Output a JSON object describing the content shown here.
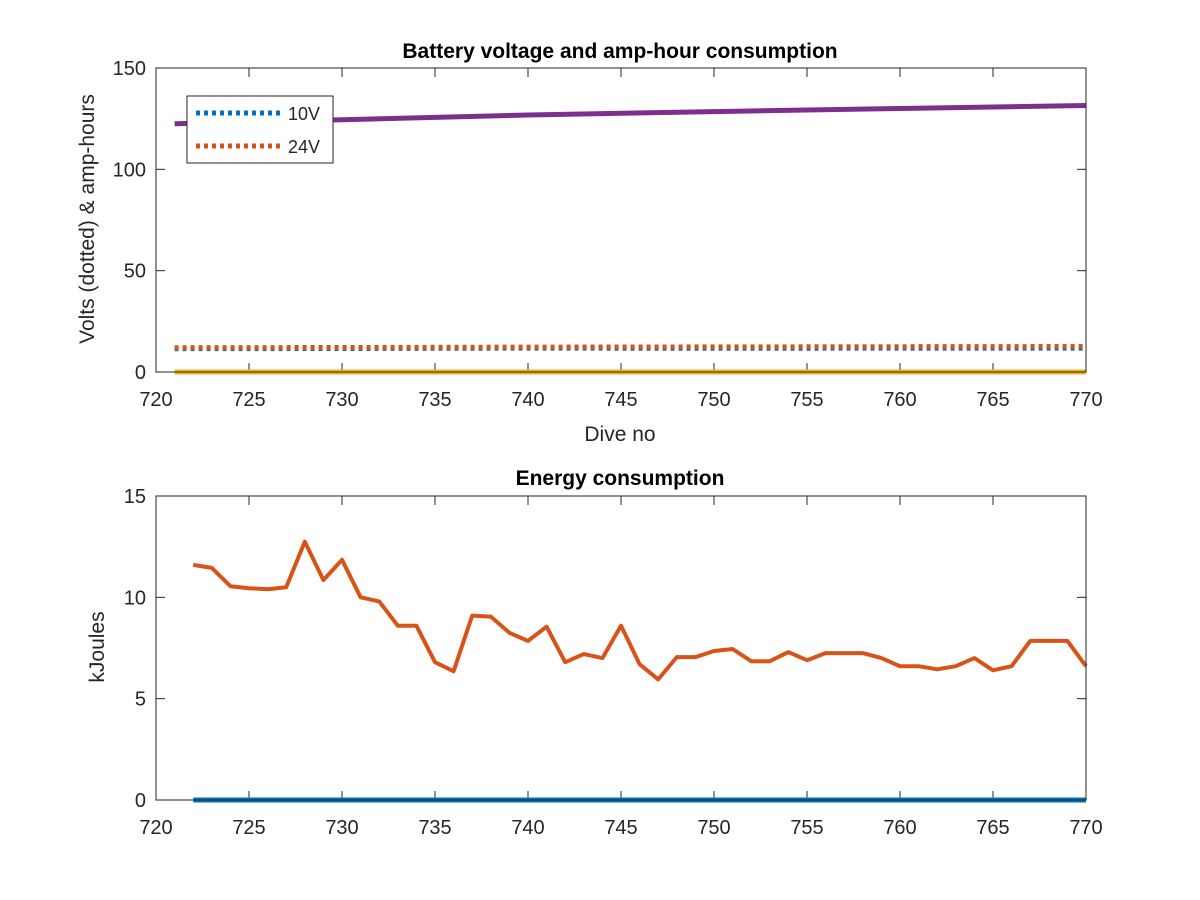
{
  "colors": {
    "background": "#ffffff",
    "axis": "#262626",
    "series_10v": "#0072BD",
    "series_24v": "#D95319",
    "amp_hours": "#7E2F8E",
    "baseline": "#EDB120",
    "energy_24v": "#D95319",
    "energy_10v": "#0072BD"
  },
  "chart_data": [
    {
      "type": "line",
      "title": "Battery voltage and amp-hour consumption",
      "xlabel": "Dive no",
      "ylabel": "Volts (dotted) & amp-hours",
      "xlim": [
        720,
        770
      ],
      "ylim": [
        0,
        150
      ],
      "xticks": [
        720,
        725,
        730,
        735,
        740,
        745,
        750,
        755,
        760,
        765,
        770
      ],
      "yticks": [
        0,
        50,
        100,
        150
      ],
      "grid": false,
      "legend_position": "top-left",
      "series": [
        {
          "name": "10V",
          "style": "dotted",
          "color": "#0072BD",
          "x": [
            721,
            730,
            740,
            750,
            760,
            770
          ],
          "y": [
            11.5,
            11.6,
            11.8,
            11.7,
            11.8,
            11.8
          ]
        },
        {
          "name": "24V",
          "style": "dotted",
          "color": "#D95319",
          "x": [
            721,
            730,
            740,
            750,
            760,
            770
          ],
          "y": [
            12.0,
            12.1,
            12.3,
            12.4,
            12.5,
            12.6
          ]
        },
        {
          "style": "solid",
          "color": "#7E2F8E",
          "x": [
            721,
            730,
            740,
            750,
            760,
            770
          ],
          "y": [
            122.5,
            124.5,
            126.8,
            128.5,
            130.0,
            131.5
          ]
        },
        {
          "style": "solid",
          "color": "#EDB120",
          "x": [
            721,
            770
          ],
          "y": [
            0,
            0
          ]
        }
      ]
    },
    {
      "type": "line",
      "title": "Energy consumption",
      "xlabel": "",
      "ylabel": "kJoules",
      "xlim": [
        720,
        770
      ],
      "ylim": [
        0,
        15
      ],
      "xticks": [
        720,
        725,
        730,
        735,
        740,
        745,
        750,
        755,
        760,
        765,
        770
      ],
      "yticks": [
        0,
        5,
        10,
        15
      ],
      "grid": false,
      "series": [
        {
          "style": "solid",
          "color": "#0072BD",
          "x": [
            722,
            770
          ],
          "y": [
            0,
            0
          ]
        },
        {
          "style": "solid",
          "color": "#D95319",
          "x": [
            722,
            723,
            724,
            725,
            726,
            727,
            728,
            729,
            730,
            731,
            732,
            733,
            734,
            735,
            736,
            737,
            738,
            739,
            740,
            741,
            742,
            743,
            744,
            745,
            746,
            747,
            748,
            749,
            750,
            751,
            752,
            753,
            754,
            755,
            756,
            757,
            758,
            759,
            760,
            761,
            762,
            763,
            764,
            765,
            766,
            767,
            768,
            769,
            770
          ],
          "y": [
            11.6,
            11.45,
            10.55,
            10.45,
            10.4,
            10.5,
            12.75,
            10.85,
            11.85,
            10.0,
            9.8,
            8.6,
            8.6,
            6.8,
            6.35,
            9.1,
            9.05,
            8.25,
            7.85,
            8.55,
            6.8,
            7.2,
            7.0,
            8.6,
            6.7,
            5.95,
            7.05,
            7.05,
            7.35,
            7.45,
            6.85,
            6.85,
            7.3,
            6.9,
            7.25,
            7.25,
            7.25,
            7.0,
            6.6,
            6.6,
            6.45,
            6.6,
            7.0,
            6.4,
            6.6,
            7.85,
            7.85,
            7.85,
            6.6
          ]
        }
      ]
    }
  ]
}
